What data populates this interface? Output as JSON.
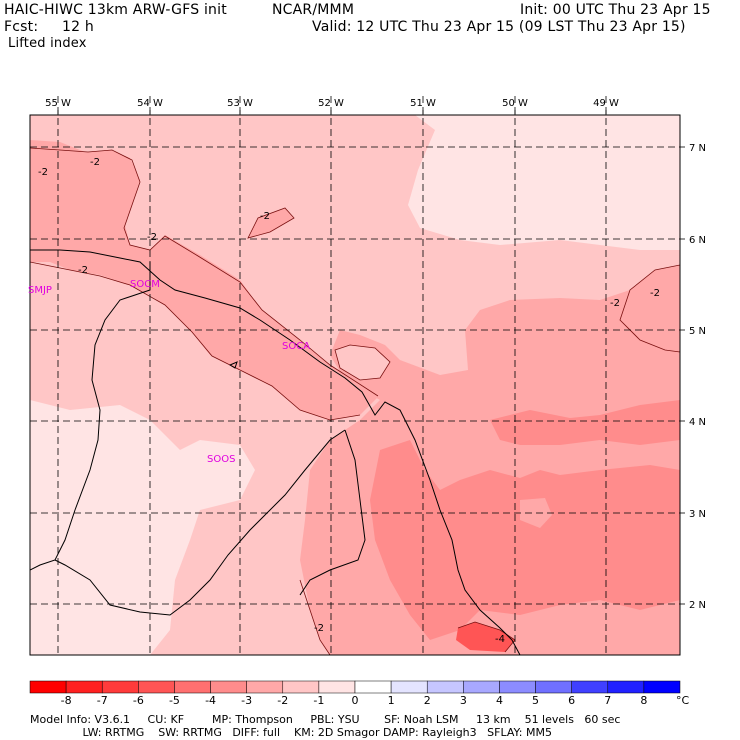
{
  "header": {
    "model_title": "HAIC-HIWC 13km ARW-GFS init",
    "org": "NCAR/MMM",
    "init": "Init: 00 UTC Thu 23 Apr 15",
    "fcst_label": "Fcst:",
    "fcst_value": "12 h",
    "valid": "Valid: 12 UTC Thu 23 Apr 15 (09 LST Thu 23 Apr 15)",
    "field": "Lifted index"
  },
  "map": {
    "lon_labels": [
      "55 W",
      "54 W",
      "53 W",
      "52 W",
      "51 W",
      "50 W",
      "49 W"
    ],
    "lat_labels": [
      "7 N",
      "6 N",
      "5 N",
      "4 N",
      "3 N",
      "2 N"
    ],
    "stations": [
      "SMJP",
      "SOCM",
      "SOCA",
      "SOOS"
    ],
    "contour_labels": [
      "-2",
      "-2",
      "-2",
      "-2",
      "-2",
      "-2",
      "-2",
      "-2",
      "-4"
    ]
  },
  "colorbar": {
    "labels": [
      "-8",
      "-7",
      "-6",
      "-5",
      "-4",
      "-3",
      "-2",
      "-1",
      "0",
      "1",
      "2",
      "3",
      "4",
      "5",
      "6",
      "7",
      "8"
    ],
    "unit": "°C",
    "colors": [
      "#ff0000",
      "#ff2020",
      "#ff3b3b",
      "#ff5555",
      "#ff7070",
      "#ff8c8c",
      "#ffa8a8",
      "#ffc6c6",
      "#ffe4e4",
      "#ffffff",
      "#e4e4ff",
      "#c6c6ff",
      "#a8a8ff",
      "#8c8cff",
      "#7070ff",
      "#4040ff",
      "#2020ff",
      "#0000ff"
    ]
  },
  "footer": {
    "line1": "Model Info: V3.6.1     CU: KF        MP: Thompson     PBL: YSU       SF: Noah LSM     13 km    51 levels   60 sec",
    "line2": "               LW: RRTMG    SW: RRTMG   DIFF: full    KM: 2D Smagor DAMP: Rayleigh3   SFLAY: MM5"
  }
}
